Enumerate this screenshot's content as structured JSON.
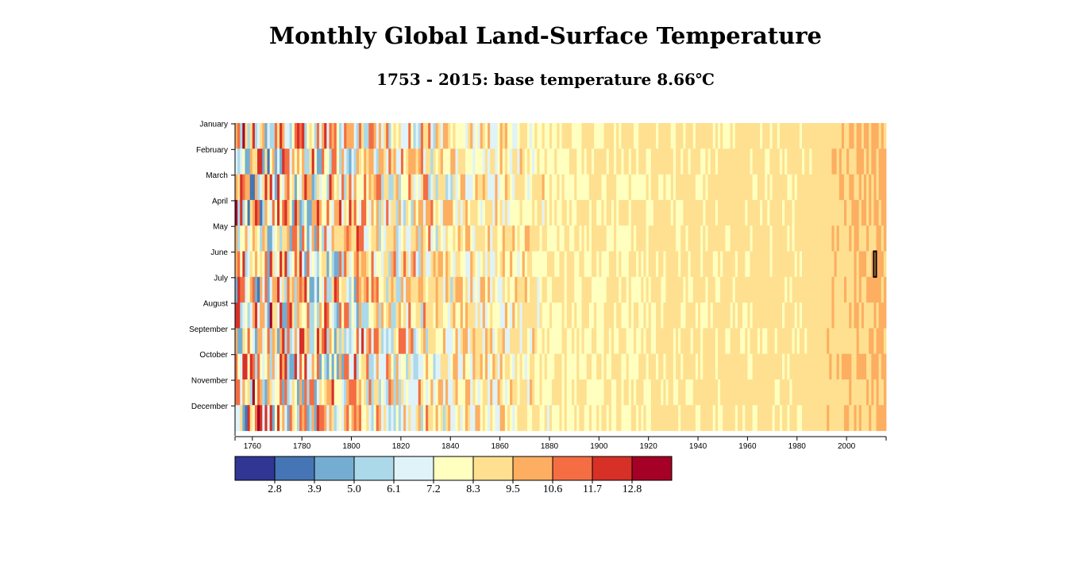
{
  "title": "Monthly Global Land-Surface Temperature",
  "subtitle": "1753 - 2015: base temperature 8.66℃",
  "chart_data": {
    "type": "heatmap",
    "base_temperature": 8.66,
    "x_range": [
      1753,
      2015
    ],
    "x_ticks": [
      1760,
      1780,
      1800,
      1820,
      1840,
      1860,
      1880,
      1900,
      1920,
      1940,
      1960,
      1980,
      2000
    ],
    "months": [
      "January",
      "February",
      "March",
      "April",
      "May",
      "June",
      "July",
      "August",
      "September",
      "October",
      "November",
      "December"
    ],
    "color_scale": [
      "#313695",
      "#4575b4",
      "#74add1",
      "#abd9e9",
      "#e0f3f8",
      "#ffffbf",
      "#fee090",
      "#fdae61",
      "#f46d43",
      "#d73027",
      "#a50026"
    ],
    "thresholds": [
      "2.8",
      "3.9",
      "5.0",
      "6.1",
      "7.2",
      "8.3",
      "9.5",
      "10.6",
      "11.7",
      "12.8"
    ],
    "highlighted_cell": {
      "year": 2011,
      "month": "June"
    }
  }
}
